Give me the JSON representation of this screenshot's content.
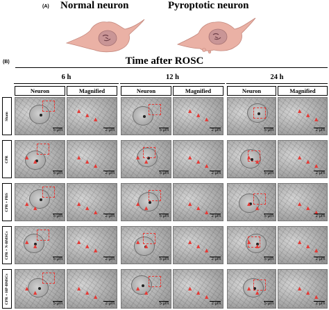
{
  "panel_a": {
    "letter": "(A)",
    "left_title": "Normal neuron",
    "right_title": "Pyroptotic neuron"
  },
  "panel_b": {
    "letter": "(B)",
    "title": "Time after ROSC",
    "time_points": [
      "6 h",
      "12 h",
      "24 h"
    ],
    "column_headers": [
      "Neuron",
      "Magnified"
    ],
    "groups": [
      "Sham",
      "CPR",
      "CPR + PBS",
      "CPR + N-BMSCs",
      "CPR + HP-BMSCs"
    ],
    "scale_labels": {
      "neuron": "5 μm",
      "magnified": "2 μm"
    }
  },
  "colors": {
    "cell_body": "#eab1a5",
    "nucleus": "#c99596",
    "annotation": "#e53935"
  }
}
